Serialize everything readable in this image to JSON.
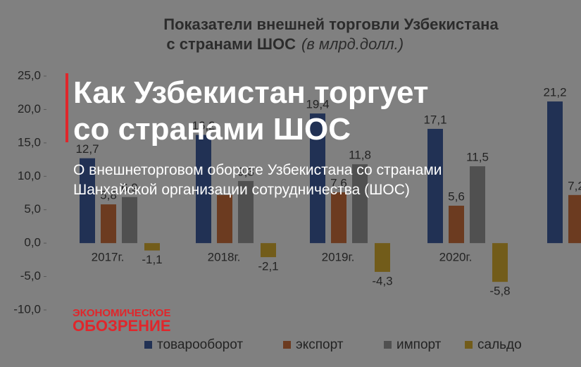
{
  "chart_data": {
    "type": "bar",
    "title": "Показатели внешней торговли Узбекистана",
    "title_line2": "с странами ШОС",
    "unit": "(в млрд.долл.)",
    "categories": [
      "2017г.",
      "2018г.",
      "2019г.",
      "2020г.",
      null
    ],
    "ylim": [
      -10,
      25
    ],
    "yticks": [
      {
        "value": -10,
        "label": "-10,0"
      },
      {
        "value": -5,
        "label": "-5,0"
      },
      {
        "value": 0,
        "label": "0,0"
      },
      {
        "value": 5,
        "label": "5,0"
      },
      {
        "value": 10,
        "label": "10,0"
      },
      {
        "value": 15,
        "label": "15,0"
      },
      {
        "value": 20,
        "label": "20,0"
      },
      {
        "value": 25,
        "label": "25,0"
      }
    ],
    "series": [
      {
        "name": "товарооборот",
        "color": "#2f4f94",
        "values": [
          12.7,
          16.2,
          19.4,
          17.1,
          21.2
        ],
        "value_labels": [
          "12,7",
          "16,2",
          "19,4",
          "17,1",
          "21,2"
        ]
      },
      {
        "name": "экспорт",
        "color": "#c4622d",
        "values": [
          5.8,
          7.2,
          7.6,
          5.6,
          7.2
        ],
        "value_labels": [
          "5,8",
          null,
          "7,6",
          "5,6",
          "7,2"
        ]
      },
      {
        "name": "импорт",
        "color": "#8c8c8c",
        "values": [
          6.9,
          9.3,
          11.8,
          11.5,
          null
        ],
        "value_labels": [
          "6,9",
          "9,3",
          "11,8",
          "11,5",
          null
        ]
      },
      {
        "name": "сальдо",
        "color": "#d1a520",
        "values": [
          -1.1,
          -2.1,
          -4.3,
          -5.8,
          null
        ],
        "value_labels": [
          "-1,1",
          "-2,1",
          "-4,3",
          "-5,8",
          null
        ]
      }
    ]
  },
  "overlay": {
    "headline_line1": "Как Узбекистан торгует",
    "headline_line2": "со странами ШОС",
    "subtitle_line1": "О внешнеторговом обороте Узбекистана со странами",
    "subtitle_line2": "Шанхайской организации сотрудничества (ШОС)",
    "logo_line1": "ЭКОНОМИЧЕСКОЕ",
    "logo_line2": "ОБОЗРЕНИЕ"
  }
}
